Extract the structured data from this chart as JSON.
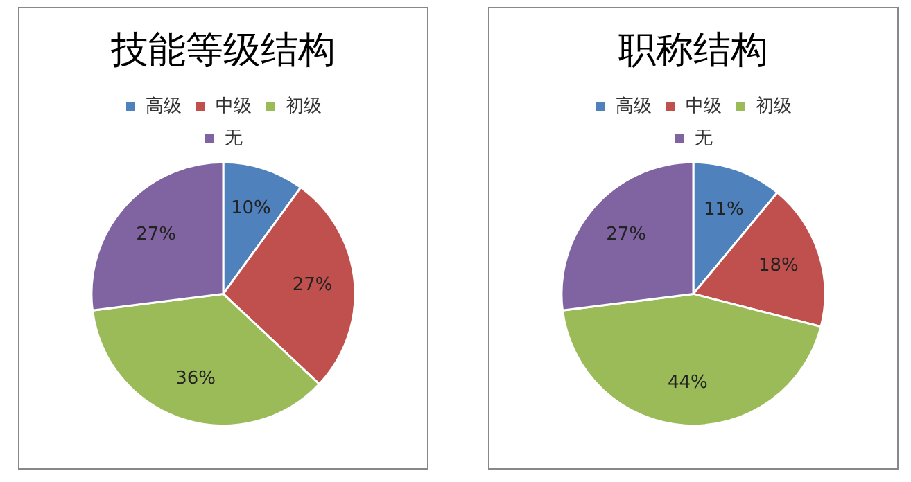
{
  "chart_data": [
    {
      "type": "pie",
      "title": "技能等级结构",
      "categories": [
        "高级",
        "中级",
        "初级",
        "无"
      ],
      "values": [
        10,
        27,
        36,
        27
      ],
      "colors": [
        "#4f81bd",
        "#c0504d",
        "#9bbb59",
        "#8064a2"
      ],
      "value_labels": [
        "10%",
        "27%",
        "36%",
        "27%"
      ],
      "legend": "top"
    },
    {
      "type": "pie",
      "title": "职称结构",
      "categories": [
        "高级",
        "中级",
        "初级",
        "无"
      ],
      "values": [
        11,
        18,
        44,
        27
      ],
      "colors": [
        "#4f81bd",
        "#c0504d",
        "#9bbb59",
        "#8064a2"
      ],
      "value_labels": [
        "11%",
        "18%",
        "44%",
        "27%"
      ],
      "legend": "top"
    }
  ]
}
